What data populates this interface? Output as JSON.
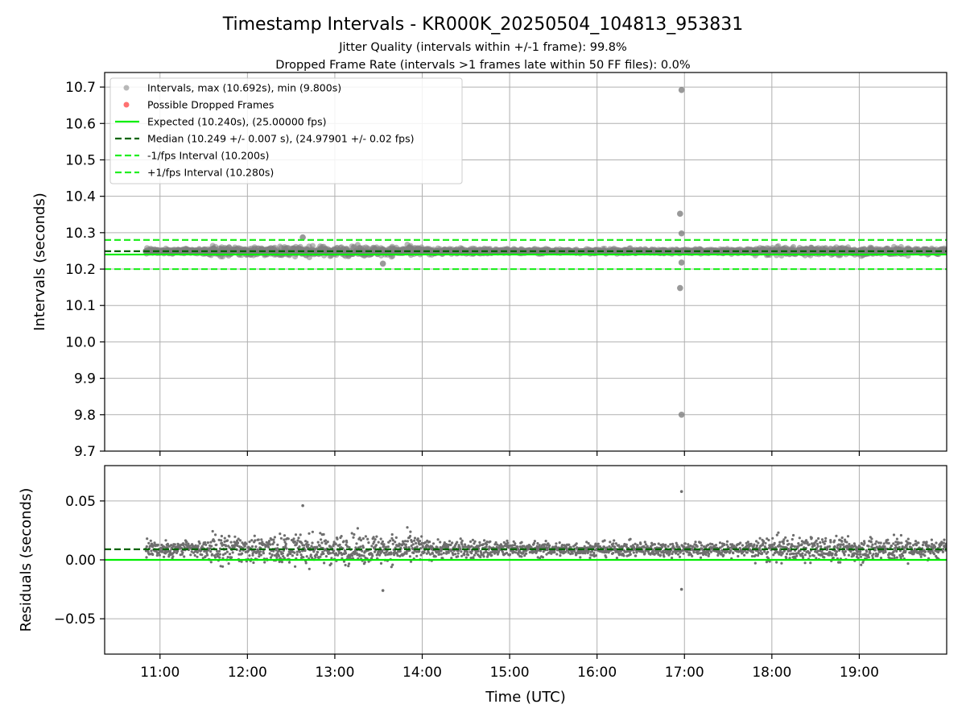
{
  "figure": {
    "title": "Timestamp Intervals - KR000K_20250504_104813_953831",
    "subtitle_1": "Jitter Quality (intervals within +/-1 frame): 99.8%",
    "subtitle_2": "Dropped Frame Rate (intervals >1 frames late within 50 FF files): 0.0%",
    "xlabel": "Time (UTC)"
  },
  "colors": {
    "intervals": "#808080",
    "dropped": "#ff4d4d",
    "expected": "#00ee00",
    "median": "#006400",
    "bounds": "#22ee22",
    "grid": "#b0b0b0"
  },
  "chart_data": [
    {
      "type": "scatter",
      "name": "intervals",
      "ylabel": "Intervals (seconds)",
      "xlim": [
        "10:22",
        "20:00"
      ],
      "ylim": [
        9.7,
        10.74
      ],
      "x_ticks": [
        "11:00",
        "12:00",
        "13:00",
        "14:00",
        "15:00",
        "16:00",
        "17:00",
        "18:00",
        "19:00"
      ],
      "y_ticks": [
        "9.7",
        "9.8",
        "9.9",
        "10.0",
        "10.1",
        "10.2",
        "10.3",
        "10.4",
        "10.5",
        "10.6",
        "10.7"
      ],
      "grid": true,
      "legend_position": "top-left",
      "legend": [
        "Intervals, max (10.692s), min (9.800s)",
        "Possible Dropped Frames",
        "Expected (10.240s), (25.00000 fps)",
        "Median (10.249 +/- 0.007 s), (24.97901 +/- 0.02 fps)",
        "-1/fps Interval (10.200s)",
        "+1/fps Interval (10.280s)"
      ],
      "reference_lines": {
        "expected": 10.24,
        "median": 10.249,
        "minus_1fps": 10.2,
        "plus_1fps": 10.28
      },
      "data_start": "10:50",
      "data_end": "20:00",
      "max": 10.692,
      "min": 9.8,
      "dropped_frames": [],
      "outliers": [
        {
          "x": "16:58",
          "y": 10.692
        },
        {
          "x": "16:57",
          "y": 10.352
        },
        {
          "x": "16:58",
          "y": 10.298
        },
        {
          "x": "16:58",
          "y": 10.218
        },
        {
          "x": "16:57",
          "y": 10.148
        },
        {
          "x": "16:58",
          "y": 9.8
        },
        {
          "x": "12:38",
          "y": 10.287
        },
        {
          "x": "13:33",
          "y": 10.215
        }
      ]
    },
    {
      "type": "scatter",
      "name": "residuals",
      "ylabel": "Residuals (seconds)",
      "xlabel": "Time (UTC)",
      "xlim": [
        "10:22",
        "20:00"
      ],
      "ylim": [
        -0.08,
        0.08
      ],
      "x_ticks": [
        "11:00",
        "12:00",
        "13:00",
        "14:00",
        "15:00",
        "16:00",
        "17:00",
        "18:00",
        "19:00"
      ],
      "y_ticks": [
        "−0.05",
        "0.00",
        "0.05"
      ],
      "grid": true,
      "reference_lines": {
        "expected": 0.0,
        "median": 0.009
      },
      "outliers": [
        {
          "x": "16:58",
          "y": 0.058
        },
        {
          "x": "16:58",
          "y": -0.025
        },
        {
          "x": "12:38",
          "y": 0.046
        },
        {
          "x": "13:33",
          "y": -0.026
        }
      ]
    }
  ]
}
